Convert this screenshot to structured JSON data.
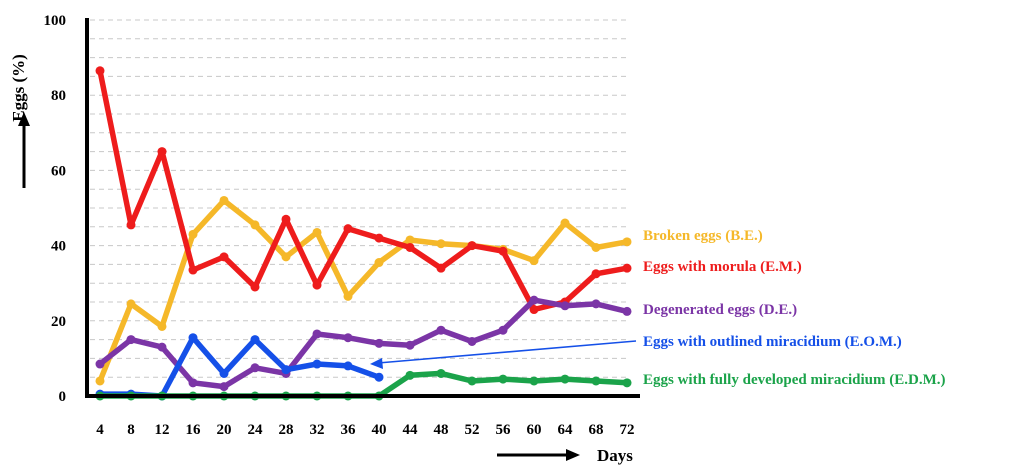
{
  "chart_data": {
    "type": "line",
    "xlabel": "Days",
    "ylabel": "Eggs (%)",
    "ylim": [
      0,
      100
    ],
    "x_ticks": [
      "4",
      "8",
      "12",
      "16",
      "20",
      "24",
      "28",
      "32",
      "36",
      "40",
      "44",
      "48",
      "52",
      "56",
      "60",
      "64",
      "68",
      "72"
    ],
    "y_ticks": [
      "0",
      "20",
      "40",
      "60",
      "80",
      "100"
    ],
    "grid": "horizontal dashed, every 5%",
    "legend_placement": "right, inline labels",
    "series": [
      {
        "name": "Broken eggs (B.E.)",
        "color": "#F5B829",
        "x": [
          4,
          8,
          12,
          16,
          20,
          24,
          28,
          32,
          36,
          40,
          44,
          48,
          52,
          56,
          60,
          64,
          68,
          72
        ],
        "values": [
          4,
          24.5,
          18.5,
          43,
          52,
          45.5,
          37,
          43.5,
          26.5,
          35.5,
          41.5,
          40.5,
          40,
          39,
          36,
          46,
          39.5,
          41
        ]
      },
      {
        "name": "Eggs with morula (E.M.)",
        "color": "#EE1C1C",
        "x": [
          4,
          8,
          12,
          16,
          20,
          24,
          28,
          32,
          36,
          40,
          44,
          48,
          52,
          56,
          60,
          64,
          68,
          72
        ],
        "values": [
          86.5,
          45.5,
          65,
          33.5,
          37,
          29,
          47,
          29.5,
          44.5,
          42,
          39.5,
          34,
          40,
          38.5,
          23,
          25,
          32.5,
          34
        ]
      },
      {
        "name": "Degenerated eggs (D.E.)",
        "color": "#7B35A6",
        "x": [
          4,
          8,
          12,
          16,
          20,
          24,
          28,
          32,
          36,
          40,
          44,
          48,
          52,
          56,
          60,
          64,
          68,
          72
        ],
        "values": [
          8.5,
          15,
          13,
          3.5,
          2.5,
          7.5,
          6,
          16.5,
          15.5,
          14,
          13.5,
          17.5,
          14.5,
          17.5,
          25.5,
          24,
          24.5,
          22.5
        ]
      },
      {
        "name": "Eggs with outlined miracidium (E.O.M.)",
        "color": "#1550E8",
        "x": [
          4,
          8,
          12,
          16,
          20,
          24,
          28,
          32,
          36,
          40
        ],
        "values": [
          0.5,
          0.5,
          0,
          15.5,
          6,
          15,
          7,
          8.5,
          8,
          5
        ]
      },
      {
        "name": "Eggs with fully developed miracidium (E.D.M.)",
        "color": "#1BA34A",
        "x": [
          4,
          8,
          12,
          16,
          20,
          24,
          28,
          32,
          36,
          40,
          44,
          48,
          52,
          56,
          60,
          64,
          68,
          72
        ],
        "values": [
          0,
          0,
          0,
          0,
          0,
          0,
          0,
          0,
          0,
          0,
          5.5,
          6,
          4,
          4.5,
          4,
          4.5,
          4,
          3.5
        ]
      }
    ]
  }
}
